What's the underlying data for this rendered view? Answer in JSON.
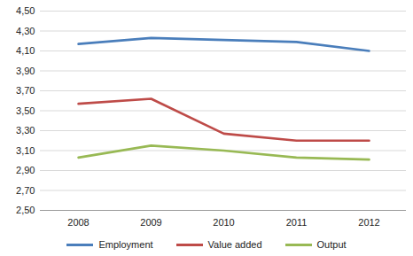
{
  "chart_data": {
    "type": "line",
    "categories": [
      "2008",
      "2009",
      "2010",
      "2011",
      "2012"
    ],
    "series": [
      {
        "name": "Employment",
        "color": "#4a7ebb",
        "values": [
          4.17,
          4.23,
          4.21,
          4.19,
          4.1
        ]
      },
      {
        "name": "Value added",
        "color": "#be4b48",
        "values": [
          3.57,
          3.62,
          3.27,
          3.2,
          3.2
        ]
      },
      {
        "name": "Output",
        "color": "#98b954",
        "values": [
          3.03,
          3.15,
          3.1,
          3.03,
          3.01
        ]
      }
    ],
    "ylim": [
      2.5,
      4.5
    ],
    "yticks": [
      {
        "value": 2.5,
        "label": "2,50"
      },
      {
        "value": 2.7,
        "label": "2,70"
      },
      {
        "value": 2.9,
        "label": "2,90"
      },
      {
        "value": 3.1,
        "label": "3,10"
      },
      {
        "value": 3.3,
        "label": "3,30"
      },
      {
        "value": 3.5,
        "label": "3,50"
      },
      {
        "value": 3.7,
        "label": "3,70"
      },
      {
        "value": 3.9,
        "label": "3,90"
      },
      {
        "value": 4.1,
        "label": "4,10"
      },
      {
        "value": 4.3,
        "label": "4,30"
      },
      {
        "value": 4.5,
        "label": "4,50"
      }
    ],
    "grid": true,
    "legend": "bottom"
  }
}
